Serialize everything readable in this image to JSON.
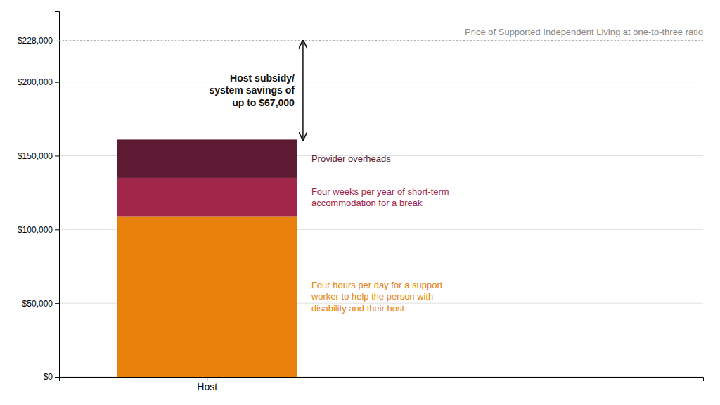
{
  "chart_data": {
    "type": "bar",
    "stacked": true,
    "title": "Price of Supported Independent Living at one-to-three ratio",
    "categories": [
      "Host"
    ],
    "series": [
      {
        "name": "Four hours per day for a support\nworker to help the person with\ndisability and their host",
        "color": "#E8820C",
        "values": [
          109000
        ]
      },
      {
        "name": "Four weeks per year of short-term\naccommodation for a break",
        "color": "#A0274A",
        "values": [
          26000
        ]
      },
      {
        "name": "Provider overheads",
        "color": "#5C1A33",
        "values": [
          26000
        ]
      }
    ],
    "ylim": [
      0,
      248000
    ],
    "yticks": [
      {
        "value": 0,
        "label": "$0"
      },
      {
        "value": 50000,
        "label": "$50,000"
      },
      {
        "value": 100000,
        "label": "$100,000"
      },
      {
        "value": 150000,
        "label": "$150,000"
      },
      {
        "value": 200000,
        "label": "$200,000"
      },
      {
        "value": 228000,
        "label": "$228,000"
      }
    ],
    "grid": true,
    "reference_lines": [
      {
        "value": 228000,
        "color": "#999999",
        "line_style": "dotted"
      }
    ],
    "annotations": [
      {
        "text": "Host subsidy/\nsystem savings of\nup to $67,000",
        "y_start": 161000,
        "y_end": 228000
      }
    ]
  }
}
